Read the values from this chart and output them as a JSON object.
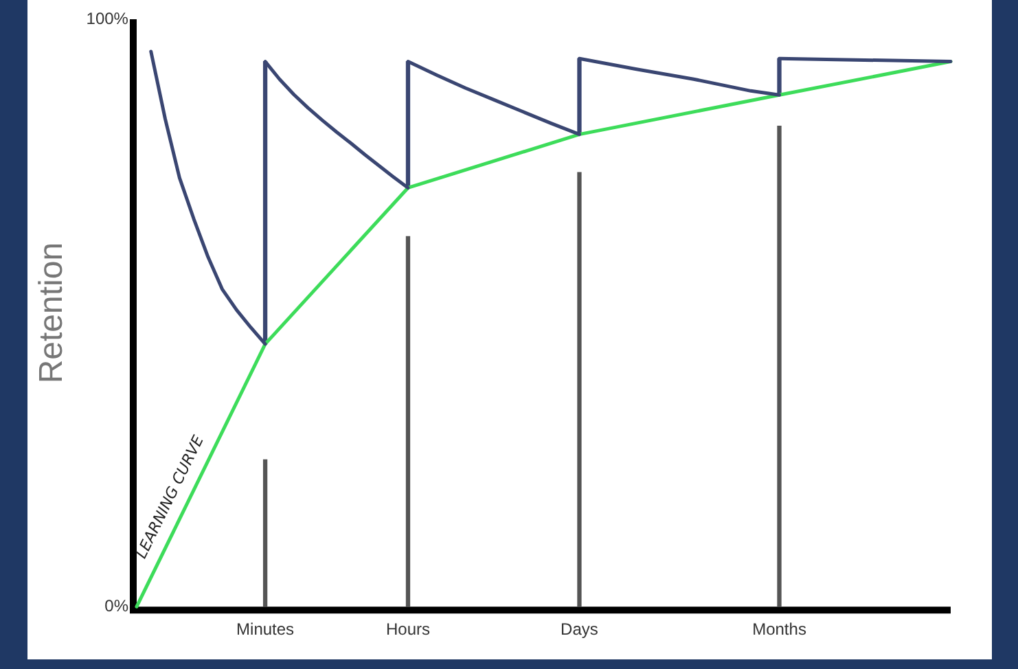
{
  "chart_data": {
    "type": "line",
    "ylabel": "Retention",
    "categories": [
      null,
      null,
      null,
      null,
      null,
      null,
      null,
      null,
      null,
      "Minutes",
      null,
      null,
      null,
      null,
      null,
      null,
      null,
      null,
      null,
      "Hours",
      null,
      null,
      null,
      null,
      null,
      null,
      null,
      null,
      null,
      null,
      null,
      "Days",
      null,
      null,
      null,
      null,
      null,
      null,
      null,
      null,
      null,
      null,
      null,
      null,
      null,
      "Months",
      null,
      null,
      null,
      null,
      null,
      null,
      null,
      null,
      null,
      null,
      null,
      null
    ],
    "ylim": [
      0,
      100
    ],
    "yticks": [
      {
        "value": 0,
        "label": "0%"
      },
      {
        "value": 100,
        "label": "100%"
      }
    ],
    "grid": false,
    "legend": false,
    "marker": "none",
    "line_style": "solid",
    "series": [
      {
        "type": "bar",
        "color": "#555555",
        "values": [
          null,
          null,
          null,
          null,
          null,
          null,
          null,
          null,
          null,
          25,
          null,
          null,
          null,
          null,
          null,
          null,
          null,
          null,
          null,
          63,
          null,
          null,
          null,
          null,
          null,
          null,
          null,
          null,
          null,
          null,
          null,
          73.9,
          null,
          null,
          null,
          null,
          null,
          null,
          null,
          null,
          null,
          null,
          null,
          null,
          null,
          81.8,
          null,
          null,
          null,
          null,
          null,
          null,
          null,
          null,
          null,
          null,
          null,
          null
        ]
      },
      {
        "type": "bar",
        "color": "#3a4672",
        "base": [
          null,
          null,
          null,
          null,
          null,
          null,
          null,
          null,
          null,
          44.7,
          null,
          null,
          null,
          null,
          null,
          null,
          null,
          null,
          null,
          71.3,
          null,
          null,
          null,
          null,
          null,
          null,
          null,
          null,
          null,
          null,
          null,
          80.4,
          null,
          null,
          null,
          null,
          null,
          null,
          null,
          null,
          null,
          null,
          null,
          null,
          null,
          87.1,
          null,
          null,
          null,
          null,
          null,
          null,
          null,
          null,
          null,
          null,
          null,
          null
        ],
        "values": [
          null,
          null,
          null,
          null,
          null,
          null,
          null,
          null,
          null,
          48.1,
          null,
          null,
          null,
          null,
          null,
          null,
          null,
          null,
          null,
          21.5,
          null,
          null,
          null,
          null,
          null,
          null,
          null,
          null,
          null,
          null,
          null,
          12.9,
          null,
          null,
          null,
          null,
          null,
          null,
          null,
          null,
          null,
          null,
          null,
          null,
          null,
          6.2,
          null,
          null,
          null,
          null,
          null,
          null,
          null,
          null,
          null,
          null,
          null,
          null
        ]
      },
      {
        "color": "#3a4672",
        "values": [
          null,
          94.5,
          83,
          73,
          66,
          59.5,
          54,
          50.5,
          47.5,
          44.7,
          null,
          null,
          null,
          null,
          null,
          null,
          null,
          null,
          null,
          null,
          null,
          null,
          null,
          null,
          null,
          null,
          null,
          null,
          null,
          null,
          null,
          null,
          null,
          null,
          null,
          null,
          null,
          null,
          null,
          null,
          null,
          null,
          null,
          null,
          null,
          null,
          null,
          null,
          null,
          null,
          null,
          null,
          null,
          null,
          null,
          null,
          null,
          null
        ]
      },
      {
        "color": "#3a4672",
        "values": [
          null,
          null,
          null,
          null,
          null,
          null,
          null,
          null,
          null,
          92.8,
          89.8,
          87.2,
          84.9,
          82.8,
          80.8,
          78.9,
          76.9,
          75,
          73.1,
          71.3,
          null,
          null,
          null,
          null,
          null,
          null,
          null,
          null,
          null,
          null,
          null,
          null,
          null,
          null,
          null,
          null,
          null,
          null,
          null,
          null,
          null,
          null,
          null,
          null,
          null,
          null,
          null,
          null,
          null,
          null,
          null,
          null,
          null,
          null,
          null,
          null,
          null,
          null
        ]
      },
      {
        "color": "#3a4672",
        "values": [
          null,
          null,
          null,
          null,
          null,
          null,
          null,
          null,
          null,
          null,
          null,
          null,
          null,
          null,
          null,
          null,
          null,
          null,
          null,
          92.8,
          null,
          90.5,
          null,
          88.3,
          null,
          86.3,
          null,
          84.3,
          null,
          82.3,
          null,
          80.4,
          null,
          null,
          null,
          null,
          null,
          null,
          null,
          null,
          null,
          null,
          null,
          null,
          null,
          null,
          null,
          null,
          null,
          null,
          null,
          null,
          null,
          null,
          null,
          null,
          null,
          null
        ]
      },
      {
        "color": "#3a4672",
        "values": [
          null,
          null,
          null,
          null,
          null,
          null,
          null,
          null,
          null,
          null,
          null,
          null,
          null,
          null,
          null,
          null,
          null,
          null,
          null,
          null,
          null,
          null,
          null,
          null,
          null,
          null,
          null,
          null,
          null,
          null,
          null,
          93.3,
          null,
          null,
          null,
          91.5,
          null,
          null,
          null,
          89.8,
          null,
          null,
          null,
          87.8,
          null,
          87.1,
          null,
          null,
          null,
          null,
          null,
          null,
          null,
          null,
          null,
          null,
          null,
          null
        ]
      },
      {
        "color": "#3a4672",
        "values": [
          null,
          null,
          null,
          null,
          null,
          null,
          null,
          null,
          null,
          null,
          null,
          null,
          null,
          null,
          null,
          null,
          null,
          null,
          null,
          null,
          null,
          null,
          null,
          null,
          null,
          null,
          null,
          null,
          null,
          null,
          null,
          null,
          null,
          null,
          null,
          null,
          null,
          null,
          null,
          null,
          null,
          null,
          null,
          null,
          null,
          93.3,
          null,
          null,
          null,
          null,
          null,
          null,
          null,
          null,
          null,
          null,
          null,
          92.8
        ]
      },
      {
        "color": "#3ddc5a",
        "values": [
          0,
          null,
          null,
          null,
          null,
          null,
          null,
          null,
          null,
          44.7,
          null,
          null,
          null,
          null,
          null,
          null,
          null,
          null,
          null,
          71.3,
          null,
          null,
          null,
          null,
          null,
          null,
          null,
          null,
          null,
          null,
          null,
          80.4,
          null,
          null,
          null,
          null,
          null,
          null,
          null,
          null,
          null,
          null,
          null,
          null,
          null,
          87.1,
          null,
          null,
          null,
          null,
          null,
          null,
          null,
          null,
          null,
          null,
          null,
          92.8
        ]
      }
    ],
    "annotations": [
      "LEARNING CURVE"
    ]
  }
}
